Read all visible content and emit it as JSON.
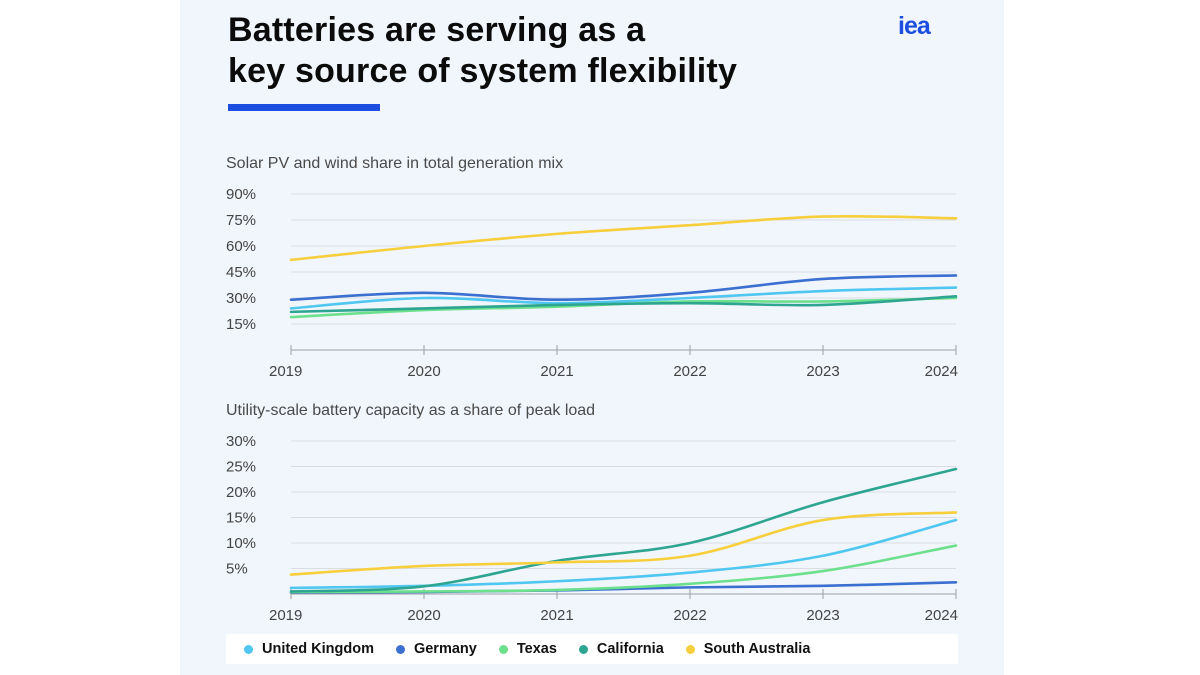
{
  "header": {
    "title_line1": "Batteries are serving as a",
    "title_line2": "key source of system flexibility",
    "logo_text": "iea"
  },
  "colors": {
    "United Kingdom": "#4fc7f0",
    "Germany": "#3b6fd0",
    "Texas": "#6ce08c",
    "California": "#2ea590",
    "South Australia": "#f7cf3c",
    "accent": "#1c4fe0"
  },
  "chart_data": [
    {
      "type": "line",
      "title": "Solar PV and wind share in total generation mix",
      "x": [
        "2019",
        "2020",
        "2021",
        "2022",
        "2023",
        "2024"
      ],
      "yticks": [
        "15%",
        "30%",
        "45%",
        "60%",
        "75%",
        "90%"
      ],
      "ylim": [
        0,
        90
      ],
      "series": [
        {
          "name": "United Kingdom",
          "values": [
            24,
            30,
            27,
            30,
            34,
            36
          ]
        },
        {
          "name": "Germany",
          "values": [
            29,
            33,
            29,
            33,
            41,
            43
          ]
        },
        {
          "name": "Texas",
          "values": [
            19,
            23,
            25,
            28,
            28,
            30
          ]
        },
        {
          "name": "California",
          "values": [
            22,
            24,
            26,
            27,
            26,
            31
          ]
        },
        {
          "name": "South Australia",
          "values": [
            52,
            60,
            67,
            72,
            77,
            76
          ]
        }
      ]
    },
    {
      "type": "line",
      "title": "Utility-scale battery capacity as a share of peak load",
      "x": [
        "2019",
        "2020",
        "2021",
        "2022",
        "2023",
        "2024"
      ],
      "yticks": [
        "5%",
        "10%",
        "15%",
        "20%",
        "25%",
        "30%"
      ],
      "ylim": [
        0,
        30
      ],
      "series": [
        {
          "name": "United Kingdom",
          "values": [
            1.2,
            1.6,
            2.5,
            4.2,
            7.5,
            14.5
          ]
        },
        {
          "name": "Germany",
          "values": [
            0.3,
            0.4,
            0.7,
            1.3,
            1.6,
            2.3
          ]
        },
        {
          "name": "Texas",
          "values": [
            0.4,
            0.5,
            0.8,
            2.0,
            4.5,
            9.5
          ]
        },
        {
          "name": "California",
          "values": [
            0.5,
            1.5,
            6.5,
            10.0,
            18.0,
            24.5
          ]
        },
        {
          "name": "South Australia",
          "values": [
            3.8,
            5.5,
            6.2,
            7.5,
            14.5,
            16.0
          ]
        }
      ]
    }
  ],
  "legend": [
    "United Kingdom",
    "Germany",
    "Texas",
    "California",
    "South Australia"
  ]
}
